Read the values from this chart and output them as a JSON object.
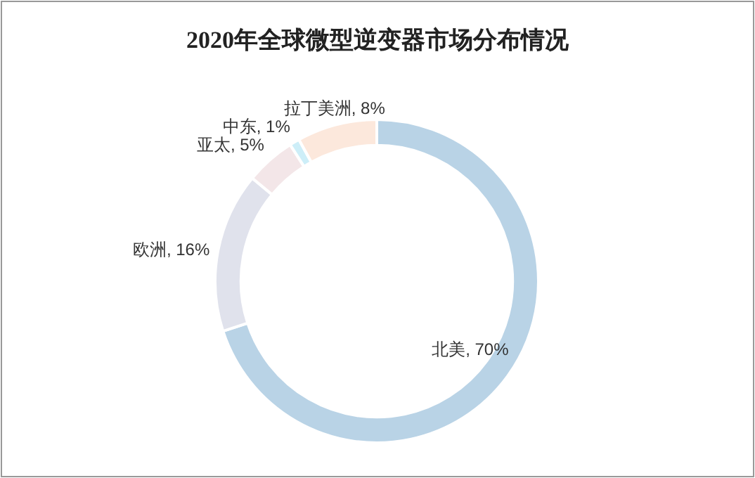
{
  "chart_data": {
    "type": "donut",
    "title": "2020年全球微型逆变器市场分布情况",
    "categories": [
      "北美",
      "欧洲",
      "亚太",
      "中东",
      "拉丁美洲"
    ],
    "values": [
      70,
      16,
      5,
      1,
      8
    ],
    "colors": [
      "#b9d3e6",
      "#e0e2ec",
      "#f3e6e8",
      "#cdeef8",
      "#fce8dc"
    ],
    "value_labels": [
      ", 70%",
      ", 16%",
      ", 5%",
      ", 1%",
      ", 8%"
    ]
  }
}
